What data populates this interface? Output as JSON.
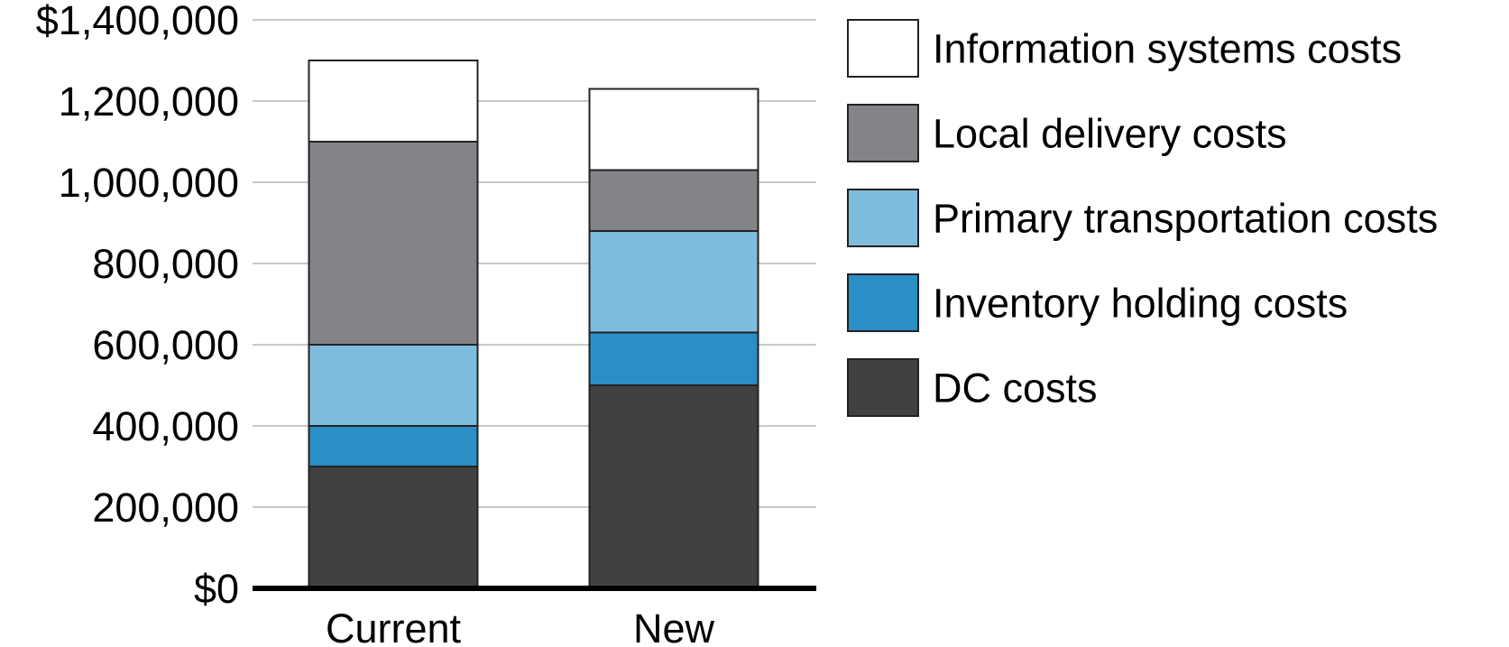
{
  "chart_data": {
    "type": "bar",
    "stacked": true,
    "categories": [
      "Current",
      "New"
    ],
    "series": [
      {
        "name": "DC costs",
        "color": "#414143",
        "values": [
          300000,
          500000
        ]
      },
      {
        "name": "Inventory holding costs",
        "color": "#2b8ec4",
        "values": [
          100000,
          130000
        ]
      },
      {
        "name": "Primary transportation costs",
        "color": "#7ebcdd",
        "values": [
          200000,
          250000
        ]
      },
      {
        "name": "Local delivery costs",
        "color": "#838487",
        "values": [
          500000,
          150000
        ]
      },
      {
        "name": "Information systems costs",
        "color": "#ffffff",
        "values": [
          200000,
          200000
        ]
      }
    ],
    "y_ticks": [
      {
        "value": 0,
        "label": "$0"
      },
      {
        "value": 200000,
        "label": "200,000"
      },
      {
        "value": 400000,
        "label": "400,000"
      },
      {
        "value": 600000,
        "label": "600,000"
      },
      {
        "value": 800000,
        "label": "800,000"
      },
      {
        "value": 1000000,
        "label": "1,000,000"
      },
      {
        "value": 1200000,
        "label": "1,200,000"
      },
      {
        "value": 1400000,
        "label": "$1,400,000"
      }
    ],
    "ylim": [
      0,
      1400000
    ],
    "grid": true,
    "legend_position": "right",
    "legend_order": [
      "Information systems costs",
      "Local delivery costs",
      "Primary transportation costs",
      "Inventory holding costs",
      "DC costs"
    ],
    "title": "",
    "xlabel": "",
    "ylabel": ""
  }
}
